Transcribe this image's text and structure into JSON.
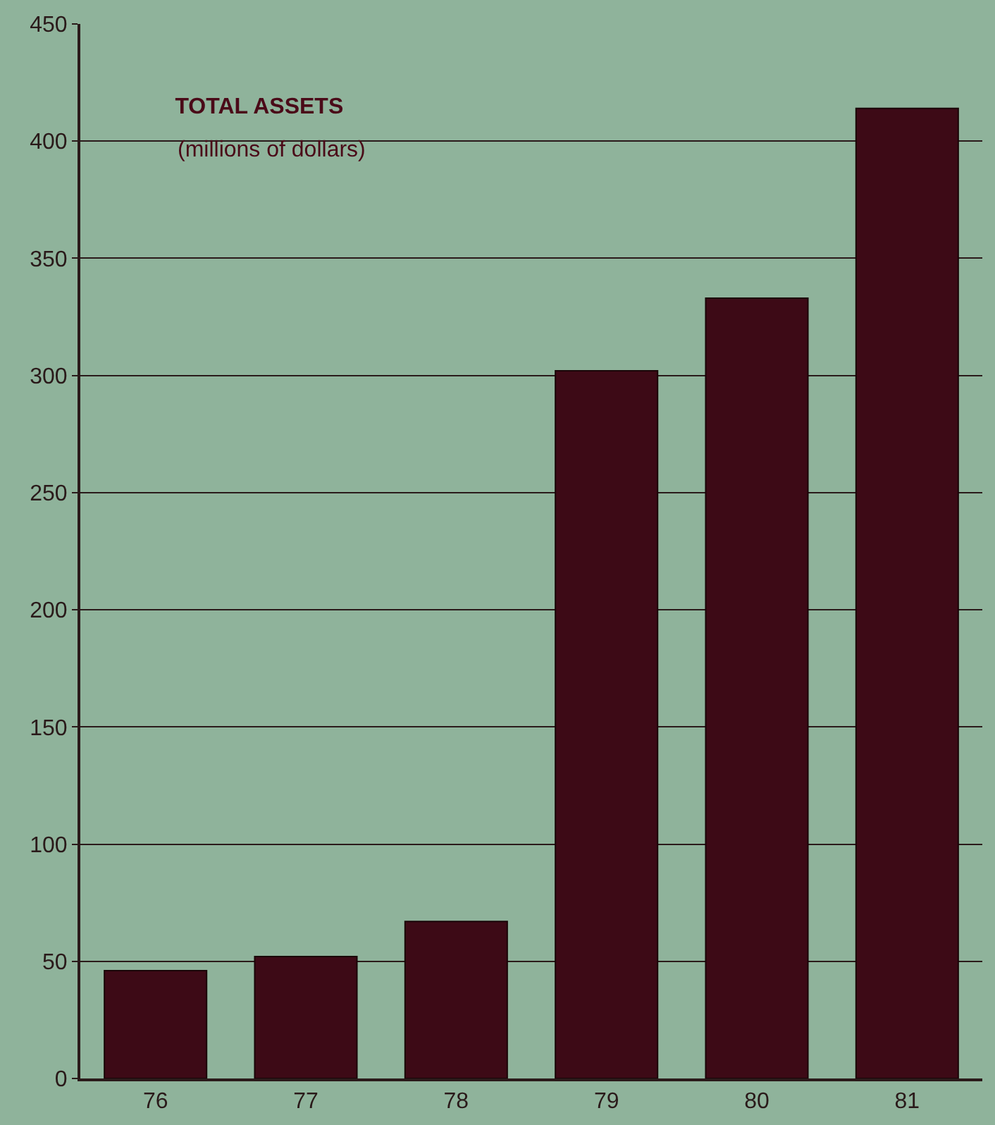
{
  "chart_data": {
    "type": "bar",
    "title": "TOTAL ASSETS",
    "subtitle": "(millions of dollars)",
    "categories": [
      "76",
      "77",
      "78",
      "79",
      "80",
      "81"
    ],
    "values": [
      46,
      52,
      67,
      302,
      333,
      414
    ],
    "color": "#3d0a16",
    "ylim": [
      0,
      450
    ],
    "yticks": [
      0,
      50,
      100,
      150,
      200,
      250,
      300,
      350,
      400,
      450
    ],
    "grid": "y"
  }
}
